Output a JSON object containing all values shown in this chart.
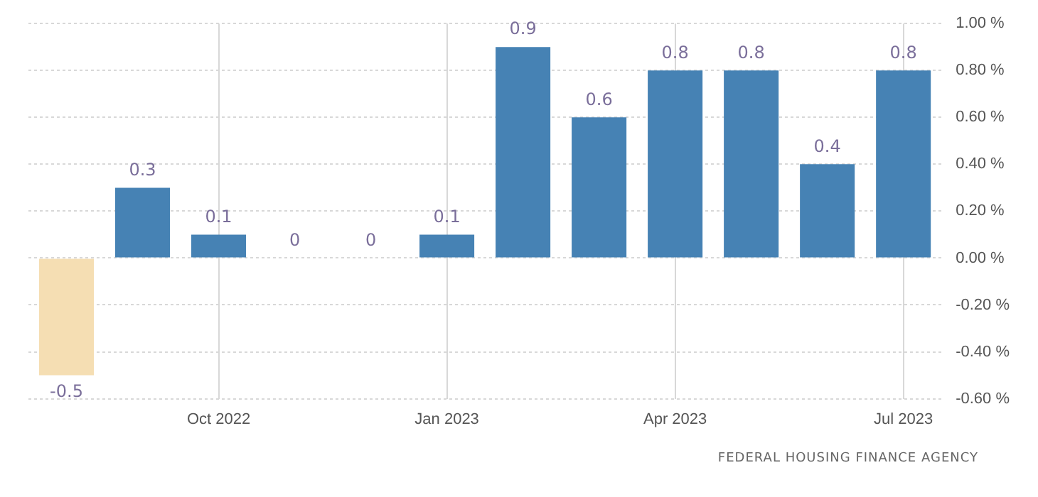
{
  "chart_data": {
    "type": "bar",
    "categories": [
      null,
      null,
      "Oct 2022",
      null,
      null,
      "Jan 2023",
      null,
      null,
      "Apr 2023",
      null,
      null,
      "Jul 2023"
    ],
    "values": [
      -0.5,
      0.3,
      0.1,
      0,
      0,
      0.1,
      0.9,
      0.6,
      0.8,
      0.8,
      0.4,
      0.8
    ],
    "colors": [
      "#f5deb3",
      "#4682b4",
      "#4682b4",
      "#4682b4",
      "#4682b4",
      "#4682b4",
      "#4682b4",
      "#4682b4",
      "#4682b4",
      "#4682b4",
      "#4682b4",
      "#4682b4"
    ],
    "ylim": [
      -0.6,
      1
    ],
    "yticks": [
      {
        "value": -0.6,
        "label": "-0.60 %"
      },
      {
        "value": -0.4,
        "label": "-0.40 %"
      },
      {
        "value": -0.2,
        "label": "-0.20 %"
      },
      {
        "value": 0,
        "label": "0.00 %"
      },
      {
        "value": 0.2,
        "label": "0.20 %"
      },
      {
        "value": 0.4,
        "label": "0.40 %"
      },
      {
        "value": 0.6,
        "label": "0.60 %"
      },
      {
        "value": 0.8,
        "label": "0.80 %"
      },
      {
        "value": 1,
        "label": "1.00 %"
      }
    ],
    "grid": true,
    "data_labels": true,
    "annotations": [
      "FEDERAL HOUSING FINANCE AGENCY"
    ]
  }
}
